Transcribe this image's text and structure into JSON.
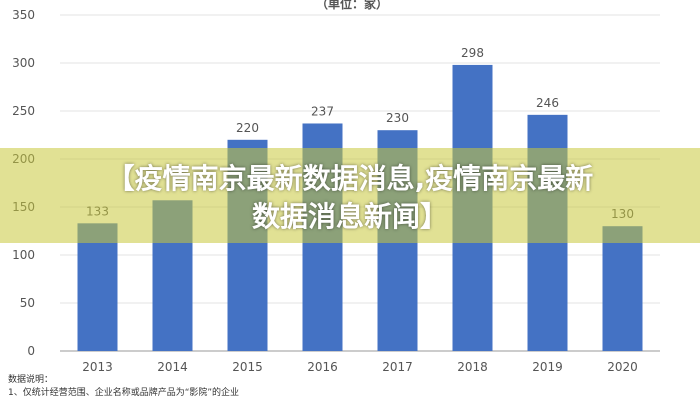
{
  "chart_data": {
    "type": "bar",
    "unit_label": "（单位：家）",
    "categories": [
      "2013",
      "2014",
      "2015",
      "2016",
      "2017",
      "2018",
      "2019",
      "2020"
    ],
    "values": [
      133,
      157,
      220,
      237,
      230,
      298,
      246,
      130
    ],
    "data_labels": [
      "133",
      "",
      "220",
      "237",
      "230",
      "298",
      "246",
      "130"
    ],
    "ylim": [
      0,
      350
    ],
    "yticks": [
      0,
      50,
      100,
      150,
      200,
      250,
      300,
      350
    ],
    "grid": true,
    "bar_color": "#4472c4"
  },
  "overlay": {
    "line1": "【疫情南京最新数据消息,疫情南京最新",
    "line2": "数据消息新闻】"
  },
  "notes": {
    "heading": "数据说明：",
    "line1": "1、仅统计经营范围、企业名称或品牌产品为“影院”的企业"
  }
}
